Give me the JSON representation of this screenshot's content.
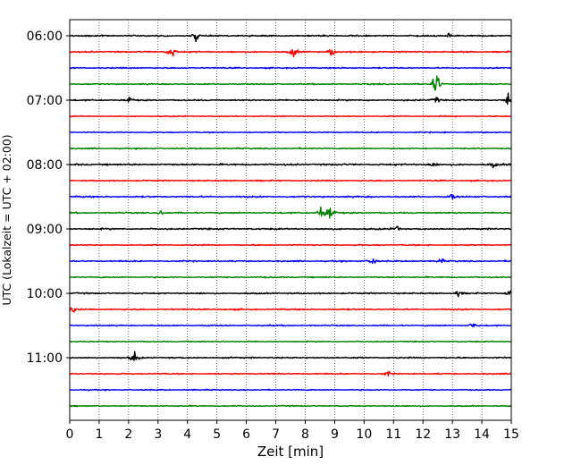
{
  "chart_data": {
    "type": "line",
    "xlabel": "Zeit  [min]",
    "ylabel": "UTC (Lokalzeit = UTC + 02:00)",
    "xlim": [
      0,
      15
    ],
    "x_ticks": [
      "0",
      "1",
      "2",
      "3",
      "4",
      "5",
      "6",
      "7",
      "8",
      "9",
      "10",
      "11",
      "12",
      "13",
      "14",
      "15"
    ],
    "y_ticks": [
      "06:00",
      "07:00",
      "08:00",
      "09:00",
      "10:00",
      "11:00"
    ],
    "vertical_grid": "dotted, every minute",
    "trace_interval_minutes": 15,
    "trace_colors_cycle": [
      "#000000",
      "#ff0000",
      "#0000ff",
      "#008000"
    ],
    "series": [
      {
        "start_utc": "06:00",
        "color": "#000000",
        "amplitude": 0.45,
        "events": [
          {
            "minute": 4.3,
            "amplitude": 1.2
          },
          {
            "minute": 12.9,
            "amplitude": 0.8
          }
        ]
      },
      {
        "start_utc": "06:15",
        "color": "#ff0000",
        "amplitude": 0.45,
        "events": [
          {
            "minute": 3.45,
            "amplitude": 2.2
          },
          {
            "minute": 7.6,
            "amplitude": 1.6
          },
          {
            "minute": 8.9,
            "amplitude": 1.3
          }
        ]
      },
      {
        "start_utc": "06:30",
        "color": "#0000ff",
        "amplitude": 0.4,
        "events": []
      },
      {
        "start_utc": "06:45",
        "color": "#008000",
        "amplitude": 0.4,
        "events": [
          {
            "minute": 12.45,
            "amplitude": 3.8
          }
        ]
      },
      {
        "start_utc": "07:00",
        "color": "#000000",
        "amplitude": 0.45,
        "events": [
          {
            "minute": 2.0,
            "amplitude": 1.1
          },
          {
            "minute": 12.45,
            "amplitude": 1.0
          },
          {
            "minute": 14.9,
            "amplitude": 1.8
          }
        ]
      },
      {
        "start_utc": "07:15",
        "color": "#ff0000",
        "amplitude": 0.35,
        "events": []
      },
      {
        "start_utc": "07:30",
        "color": "#0000ff",
        "amplitude": 0.35,
        "events": []
      },
      {
        "start_utc": "07:45",
        "color": "#008000",
        "amplitude": 0.4,
        "events": []
      },
      {
        "start_utc": "08:00",
        "color": "#000000",
        "amplitude": 0.55,
        "events": [
          {
            "minute": 12.3,
            "amplitude": 1.0
          },
          {
            "minute": 14.4,
            "amplitude": 0.8
          }
        ]
      },
      {
        "start_utc": "08:15",
        "color": "#ff0000",
        "amplitude": 0.4,
        "events": []
      },
      {
        "start_utc": "08:30",
        "color": "#0000ff",
        "amplitude": 0.5,
        "events": [
          {
            "minute": 13.0,
            "amplitude": 0.8
          }
        ]
      },
      {
        "start_utc": "08:45",
        "color": "#008000",
        "amplitude": 0.45,
        "events": [
          {
            "minute": 8.55,
            "amplitude": 2.0
          },
          {
            "minute": 8.85,
            "amplitude": 3.2
          },
          {
            "minute": 3.1,
            "amplitude": 0.8
          }
        ]
      },
      {
        "start_utc": "09:00",
        "color": "#000000",
        "amplitude": 0.5,
        "events": [
          {
            "minute": 11.1,
            "amplitude": 1.0
          }
        ]
      },
      {
        "start_utc": "09:15",
        "color": "#ff0000",
        "amplitude": 0.4,
        "events": []
      },
      {
        "start_utc": "09:30",
        "color": "#0000ff",
        "amplitude": 0.45,
        "events": [
          {
            "minute": 10.3,
            "amplitude": 1.4
          },
          {
            "minute": 12.6,
            "amplitude": 0.8
          }
        ]
      },
      {
        "start_utc": "09:45",
        "color": "#008000",
        "amplitude": 0.4,
        "events": []
      },
      {
        "start_utc": "10:00",
        "color": "#000000",
        "amplitude": 0.45,
        "events": [
          {
            "minute": 13.2,
            "amplitude": 0.8
          },
          {
            "minute": 14.95,
            "amplitude": 1.6
          }
        ]
      },
      {
        "start_utc": "10:15",
        "color": "#ff0000",
        "amplitude": 0.45,
        "events": [
          {
            "minute": 0.1,
            "amplitude": 1.2
          }
        ]
      },
      {
        "start_utc": "10:30",
        "color": "#0000ff",
        "amplitude": 0.4,
        "events": [
          {
            "minute": 13.7,
            "amplitude": 1.0
          }
        ]
      },
      {
        "start_utc": "10:45",
        "color": "#008000",
        "amplitude": 0.35,
        "events": []
      },
      {
        "start_utc": "11:00",
        "color": "#000000",
        "amplitude": 0.45,
        "events": [
          {
            "minute": 2.2,
            "amplitude": 1.8
          }
        ]
      },
      {
        "start_utc": "11:15",
        "color": "#ff0000",
        "amplitude": 0.4,
        "events": [
          {
            "minute": 10.8,
            "amplitude": 0.8
          }
        ]
      },
      {
        "start_utc": "11:30",
        "color": "#0000ff",
        "amplitude": 0.35,
        "events": []
      },
      {
        "start_utc": "11:45",
        "color": "#008000",
        "amplitude": 0.35,
        "events": []
      }
    ]
  }
}
